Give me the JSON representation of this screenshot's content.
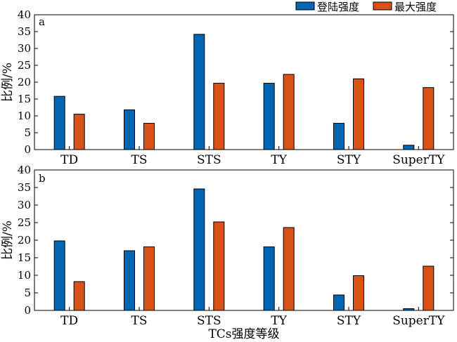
{
  "legend": [
    "登陆强度",
    "最大强度"
  ],
  "colors": {
    "landfall": "#0066b3",
    "max": "#d95218"
  },
  "chart_data": [
    {
      "type": "bar",
      "panel_label": "a",
      "categories": [
        "TD",
        "TS",
        "STS",
        "TY",
        "STY",
        "SuperTY"
      ],
      "series": [
        {
          "name": "登陆强度",
          "values": [
            15.8,
            11.8,
            34.2,
            19.7,
            7.8,
            1.3
          ]
        },
        {
          "name": "最大强度",
          "values": [
            10.5,
            7.8,
            19.7,
            22.3,
            21.0,
            18.4
          ]
        }
      ],
      "ylabel": "比例/%",
      "ylim": [
        0,
        40
      ],
      "yticks": [
        0,
        5,
        10,
        15,
        20,
        25,
        30,
        35,
        40
      ],
      "grid": false,
      "legend_position": "top-right"
    },
    {
      "type": "bar",
      "panel_label": "b",
      "categories": [
        "TD",
        "TS",
        "STS",
        "TY",
        "STY",
        "SuperTY"
      ],
      "series": [
        {
          "name": "登陆强度",
          "values": [
            19.8,
            17.0,
            34.6,
            18.1,
            4.4,
            0.5
          ]
        },
        {
          "name": "最大强度",
          "values": [
            8.2,
            18.1,
            25.2,
            23.6,
            9.9,
            12.6
          ]
        }
      ],
      "xlabel": "TCs强度等级",
      "ylabel": "比例/%",
      "ylim": [
        0,
        40
      ],
      "yticks": [
        0,
        5,
        10,
        15,
        20,
        25,
        30,
        35,
        40
      ],
      "grid": false
    }
  ]
}
